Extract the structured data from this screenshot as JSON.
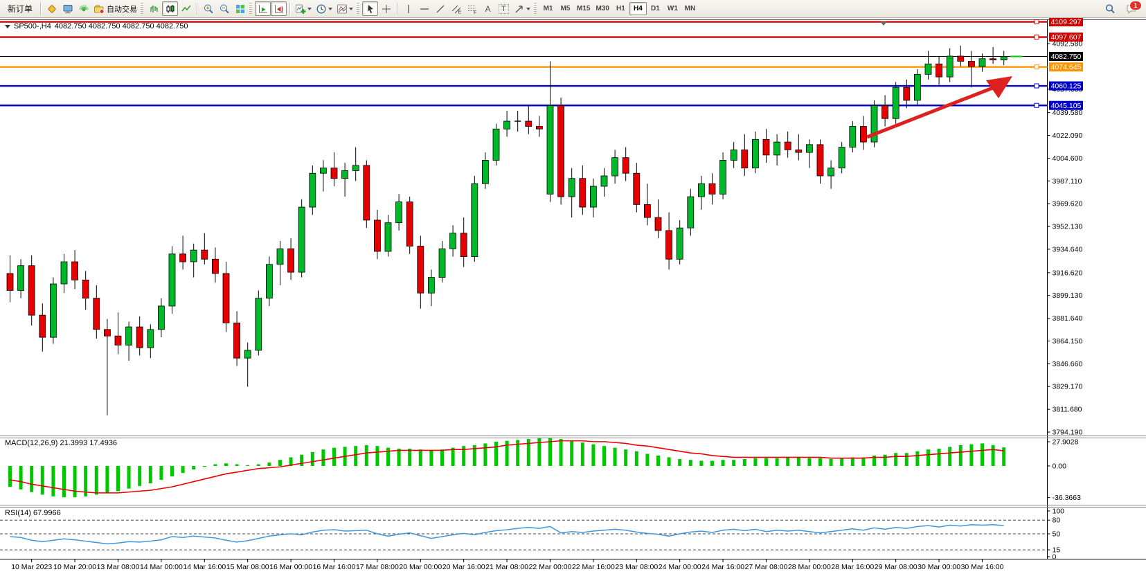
{
  "toolbar": {
    "new_order_label": "新订单",
    "autotrading_label": "自动交易",
    "timeframes": [
      "M1",
      "M5",
      "M15",
      "M30",
      "H1",
      "H4",
      "D1",
      "W1",
      "MN"
    ],
    "active_timeframe": "H4",
    "notification_count": "1",
    "tool_letters": {
      "text": "A",
      "label": "T",
      "channel": "E",
      "fibonacci": "F"
    }
  },
  "chart": {
    "symbol_title": "SP500-,H4",
    "ohlc_text": "4082.750 4082.750 4082.750 4082.750",
    "macd_label": "MACD(12,26,9) 21.3993 17.4936",
    "rsi_label": "RSI(14) 67.9966",
    "price_axis_ticks": [
      "4092.580",
      "4057.600",
      "4039.580",
      "4022.090",
      "4004.600",
      "3987.110",
      "3969.620",
      "3952.130",
      "3934.640",
      "3916.620",
      "3899.130",
      "3881.640",
      "3864.150",
      "3846.660",
      "3829.170",
      "3811.680",
      "3794.190"
    ],
    "levels": [
      {
        "label": "4109.297",
        "price": 4109.297,
        "color": "#d40000",
        "width": 2.4
      },
      {
        "label": "4097.607",
        "price": 4097.607,
        "color": "#d40000",
        "width": 2.4
      },
      {
        "label": "4082.750",
        "price": 4082.75,
        "color": "#000000",
        "width": 1,
        "style": "current"
      },
      {
        "label": "4074.645",
        "price": 4074.645,
        "color": "#ff9500",
        "width": 2.4
      },
      {
        "label": "4060.125",
        "price": 4060.125,
        "color": "#0000cc",
        "width": 2.4
      },
      {
        "label": "4045.105",
        "price": 4045.105,
        "color": "#0000cc",
        "width": 2.4
      }
    ],
    "macd_axis": [
      {
        "label": "27.9028",
        "value": 27.9028
      },
      {
        "label": "0.00",
        "value": 0
      },
      {
        "label": "-36.3663",
        "value": -36.3663
      }
    ],
    "rsi_axis": [
      {
        "label": "100",
        "value": 100
      },
      {
        "label": "80",
        "value": 80,
        "dashed": true
      },
      {
        "label": "50",
        "value": 50,
        "dashed": true
      },
      {
        "label": "15",
        "value": 15,
        "dashed": true
      },
      {
        "label": "0",
        "value": 0
      }
    ],
    "time_labels": [
      "10 Mar 2023",
      "10 Mar 20:00",
      "13 Mar 08:00",
      "14 Mar 00:00",
      "14 Mar 16:00",
      "15 Mar 08:00",
      "16 Mar 00:00",
      "16 Mar 16:00",
      "17 Mar 08:00",
      "20 Mar 00:00",
      "20 Mar 16:00",
      "21 Mar 08:00",
      "22 Mar 00:00",
      "22 Mar 16:00",
      "23 Mar 08:00",
      "24 Mar 00:00",
      "24 Mar 16:00",
      "27 Mar 08:00",
      "28 Mar 00:00",
      "28 Mar 16:00",
      "29 Mar 08:00",
      "30 Mar 00:00",
      "30 Mar 16:00"
    ]
  },
  "chart_data": [
    {
      "type": "candlestick",
      "symbol": "SP500-",
      "timeframe": "H4",
      "title": "SP500-,H4 4082.750 4082.750 4082.750 4082.750",
      "up_color": "#00b92b",
      "down_color": "#e60000",
      "current_close": 4082.75,
      "ohlc": [
        [
          3916,
          3930,
          3894,
          3903
        ],
        [
          3903,
          3927,
          3897,
          3922
        ],
        [
          3922,
          3930,
          3876,
          3884
        ],
        [
          3884,
          3893,
          3856,
          3867
        ],
        [
          3867,
          3913,
          3862,
          3908
        ],
        [
          3908,
          3931,
          3901,
          3925
        ],
        [
          3925,
          3934,
          3904,
          3911
        ],
        [
          3911,
          3918,
          3888,
          3897
        ],
        [
          3897,
          3907,
          3866,
          3873
        ],
        [
          3873,
          3881,
          3807,
          3868
        ],
        [
          3868,
          3886,
          3854,
          3861
        ],
        [
          3861,
          3879,
          3849,
          3875
        ],
        [
          3875,
          3883,
          3853,
          3859
        ],
        [
          3859,
          3877,
          3851,
          3873
        ],
        [
          3873,
          3897,
          3867,
          3891
        ],
        [
          3891,
          3937,
          3885,
          3931
        ],
        [
          3931,
          3945,
          3919,
          3925
        ],
        [
          3925,
          3939,
          3913,
          3934
        ],
        [
          3934,
          3947,
          3923,
          3927
        ],
        [
          3927,
          3936,
          3909,
          3916
        ],
        [
          3916,
          3925,
          3871,
          3878
        ],
        [
          3878,
          3887,
          3845,
          3851
        ],
        [
          3851,
          3863,
          3829,
          3857
        ],
        [
          3857,
          3903,
          3853,
          3897
        ],
        [
          3897,
          3929,
          3891,
          3923
        ],
        [
          3923,
          3941,
          3907,
          3935
        ],
        [
          3935,
          3943,
          3911,
          3917
        ],
        [
          3917,
          3973,
          3913,
          3967
        ],
        [
          3967,
          3999,
          3961,
          3993
        ],
        [
          3993,
          4003,
          3979,
          3997
        ],
        [
          3997,
          4009,
          3983,
          3989
        ],
        [
          3989,
          4001,
          3975,
          3995
        ],
        [
          3995,
          4013,
          3987,
          3999
        ],
        [
          3999,
          4003,
          3951,
          3957
        ],
        [
          3957,
          3965,
          3927,
          3933
        ],
        [
          3933,
          3961,
          3929,
          3955
        ],
        [
          3955,
          3977,
          3949,
          3971
        ],
        [
          3971,
          3975,
          3931,
          3937
        ],
        [
          3937,
          3945,
          3889,
          3901
        ],
        [
          3901,
          3919,
          3891,
          3913
        ],
        [
          3913,
          3941,
          3909,
          3935
        ],
        [
          3935,
          3953,
          3929,
          3947
        ],
        [
          3947,
          3959,
          3921,
          3929
        ],
        [
          3929,
          3991,
          3925,
          3985
        ],
        [
          3985,
          4009,
          3981,
          4003
        ],
        [
          4003,
          4031,
          3999,
          4027
        ],
        [
          4027,
          4041,
          4021,
          4033
        ],
        [
          4033,
          4041,
          4025,
          4033
        ],
        [
          4033,
          4045,
          4023,
          4029
        ],
        [
          4029,
          4037,
          4021,
          4027
        ],
        [
          3977,
          4079,
          3971,
          4045
        ],
        [
          4045,
          4051,
          3969,
          3975
        ],
        [
          3975,
          3997,
          3959,
          3989
        ],
        [
          3989,
          3999,
          3961,
          3967
        ],
        [
          3967,
          3989,
          3959,
          3983
        ],
        [
          3983,
          3997,
          3975,
          3991
        ],
        [
          3991,
          4011,
          3985,
          4005
        ],
        [
          4005,
          4013,
          3987,
          3993
        ],
        [
          3993,
          4001,
          3963,
          3969
        ],
        [
          3969,
          3985,
          3953,
          3959
        ],
        [
          3959,
          3973,
          3943,
          3949
        ],
        [
          3949,
          3963,
          3919,
          3927
        ],
        [
          3927,
          3957,
          3923,
          3951
        ],
        [
          3951,
          3981,
          3945,
          3975
        ],
        [
          3975,
          3991,
          3965,
          3985
        ],
        [
          3985,
          3993,
          3969,
          3977
        ],
        [
          3977,
          4009,
          3973,
          4003
        ],
        [
          4003,
          4017,
          3997,
          4011
        ],
        [
          4011,
          4023,
          3991,
          3997
        ],
        [
          3997,
          4025,
          3993,
          4019
        ],
        [
          4019,
          4027,
          4001,
          4007
        ],
        [
          4007,
          4023,
          3999,
          4017
        ],
        [
          4017,
          4025,
          4005,
          4011
        ],
        [
          4011,
          4023,
          4003,
          4009
        ],
        [
          4009,
          4019,
          3997,
          4015
        ],
        [
          4015,
          4019,
          3985,
          3991
        ],
        [
          3991,
          4003,
          3981,
          3997
        ],
        [
          3997,
          4017,
          3993,
          4013
        ],
        [
          4013,
          4033,
          4009,
          4029
        ],
        [
          4029,
          4037,
          4011,
          4017
        ],
        [
          4017,
          4049,
          4013,
          4045
        ],
        [
          4045,
          4053,
          4029,
          4035
        ],
        [
          4035,
          4063,
          4031,
          4059
        ],
        [
          4059,
          4065,
          4043,
          4049
        ],
        [
          4049,
          4073,
          4045,
          4069
        ],
        [
          4069,
          4087,
          4065,
          4077
        ],
        [
          4077,
          4083,
          4061,
          4067
        ],
        [
          4067,
          4089,
          4063,
          4083
        ],
        [
          4083,
          4091,
          4075,
          4079
        ],
        [
          4079,
          4087,
          4059,
          4075
        ],
        [
          4075,
          4085,
          4071,
          4081
        ],
        [
          4081,
          4090,
          4077,
          4080
        ],
        [
          4080,
          4087,
          4076,
          4082.75
        ]
      ],
      "annotations": [
        {
          "type": "arrow",
          "color": "#dd2020",
          "direction": "up-right"
        }
      ]
    },
    {
      "type": "bar",
      "name": "MACD histogram",
      "params": "12,26,9",
      "current_main": 21.3993,
      "current_signal": 17.4936,
      "bar_color": "#00c800",
      "signal_color": "#e80000",
      "values": [
        -24,
        -27,
        -30,
        -33,
        -35,
        -36,
        -36,
        -35,
        -33,
        -31,
        -29,
        -26,
        -23,
        -20,
        -16,
        -12,
        -8,
        -4,
        -1,
        2,
        3,
        2,
        1,
        2,
        4,
        7,
        10,
        13,
        16,
        19,
        21,
        22,
        23,
        24,
        23,
        21,
        20,
        20,
        19,
        18,
        19,
        21,
        23,
        24,
        26,
        28,
        29,
        30,
        31,
        32,
        32,
        31,
        29,
        27,
        25,
        23,
        21,
        19,
        17,
        14,
        12,
        10,
        8,
        7,
        6,
        6,
        7,
        7,
        8,
        9,
        9,
        9,
        10,
        10,
        9,
        9,
        8,
        9,
        10,
        10,
        12,
        13,
        15,
        15,
        17,
        19,
        20,
        22,
        24,
        25,
        26,
        24,
        21.4
      ],
      "signal": [
        -16,
        -18,
        -21,
        -23,
        -25,
        -27,
        -29,
        -30,
        -31,
        -31,
        -31,
        -30,
        -29,
        -28,
        -26,
        -24,
        -21,
        -18,
        -15,
        -12,
        -9,
        -7,
        -5,
        -3,
        -2,
        -1,
        1,
        3,
        5,
        7,
        9,
        11,
        13,
        15,
        16,
        17,
        18,
        18,
        18,
        18,
        18,
        19,
        19,
        20,
        21,
        22,
        24,
        25,
        26,
        27,
        28,
        29,
        29,
        29,
        28,
        28,
        27,
        26,
        24,
        23,
        21,
        19,
        17,
        15,
        14,
        12,
        11,
        10,
        10,
        10,
        10,
        10,
        10,
        10,
        10,
        10,
        9,
        9,
        9,
        9,
        10,
        10,
        11,
        11,
        12,
        13,
        14,
        15,
        16,
        17,
        18,
        19,
        17.5
      ]
    },
    {
      "type": "line",
      "name": "RSI",
      "period": 14,
      "current": 67.9966,
      "line_color": "#3f96dc",
      "values": [
        44,
        42,
        36,
        33,
        36,
        39,
        37,
        34,
        31,
        28,
        30,
        33,
        32,
        34,
        37,
        44,
        42,
        45,
        43,
        41,
        36,
        32,
        35,
        40,
        45,
        48,
        50,
        48,
        54,
        58,
        59,
        56,
        57,
        58,
        50,
        45,
        49,
        52,
        46,
        40,
        44,
        48,
        51,
        48,
        53,
        57,
        59,
        62,
        64,
        62,
        66,
        52,
        55,
        53,
        56,
        58,
        60,
        58,
        54,
        51,
        49,
        45,
        50,
        54,
        56,
        53,
        58,
        60,
        57,
        60,
        55,
        58,
        56,
        58,
        55,
        52,
        55,
        58,
        61,
        58,
        63,
        60,
        64,
        62,
        66,
        68,
        65,
        69,
        67,
        70,
        69,
        70,
        68
      ]
    }
  ]
}
